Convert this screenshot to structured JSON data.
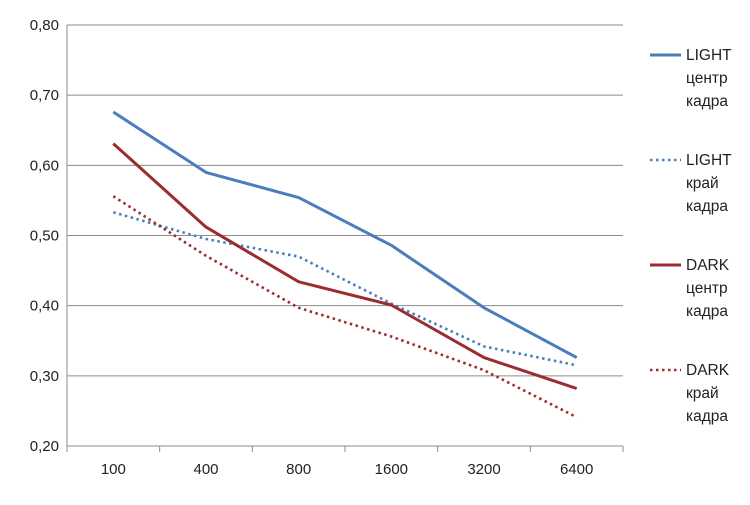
{
  "chart_data": {
    "type": "line",
    "categories": [
      "100",
      "400",
      "800",
      "1600",
      "3200",
      "6400"
    ],
    "ylim": [
      0.2,
      0.8
    ],
    "yticks": [
      "0,20",
      "0,30",
      "0,40",
      "0,50",
      "0,60",
      "0,70",
      "0,80"
    ],
    "grid": true,
    "legend_position": "right",
    "series": [
      {
        "name": "LIGHT центр кадра",
        "name_lines": [
          "LIGHT",
          "центр",
          "кадра"
        ],
        "color": "#4a7ebb",
        "dash": "solid",
        "values": [
          0.676,
          0.59,
          0.554,
          0.486,
          0.397,
          0.326
        ]
      },
      {
        "name": "LIGHT край кадра",
        "name_lines": [
          "LIGHT",
          "край",
          "кадра"
        ],
        "color": "#4a7ebb",
        "dash": "dotted",
        "values": [
          0.533,
          0.495,
          0.47,
          0.403,
          0.342,
          0.315
        ]
      },
      {
        "name": "DARK центр кадра",
        "name_lines": [
          "DARK",
          "центр",
          "кадра"
        ],
        "color": "#9b2d30",
        "dash": "solid",
        "values": [
          0.631,
          0.512,
          0.434,
          0.401,
          0.326,
          0.282
        ]
      },
      {
        "name": "DARK край кадра",
        "name_lines": [
          "DARK",
          "край",
          "кадра"
        ],
        "color": "#9b2d30",
        "dash": "dotted",
        "values": [
          0.556,
          0.471,
          0.397,
          0.356,
          0.308,
          0.241
        ]
      }
    ]
  }
}
